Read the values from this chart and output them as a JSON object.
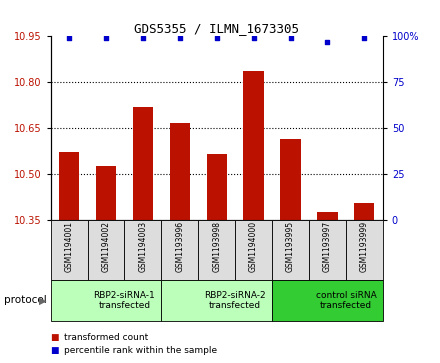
{
  "title": "GDS5355 / ILMN_1673305",
  "samples": [
    "GSM1194001",
    "GSM1194002",
    "GSM1194003",
    "GSM1193996",
    "GSM1193998",
    "GSM1194000",
    "GSM1193995",
    "GSM1193997",
    "GSM1193999"
  ],
  "bar_values": [
    10.57,
    10.525,
    10.72,
    10.665,
    10.565,
    10.835,
    10.615,
    10.375,
    10.405
  ],
  "percentile_values": [
    99,
    99,
    99,
    99,
    99,
    99,
    99,
    97,
    99
  ],
  "ylim_left": [
    10.35,
    10.95
  ],
  "ylim_right": [
    0,
    100
  ],
  "yticks_left": [
    10.35,
    10.5,
    10.65,
    10.8,
    10.95
  ],
  "yticks_right": [
    0,
    25,
    50,
    75,
    100
  ],
  "bar_color": "#bb1100",
  "dot_color": "#0000cc",
  "groups": [
    {
      "label": "RBP2-siRNA-1\ntransfected",
      "start": 0,
      "end": 3,
      "color": "#bbffbb"
    },
    {
      "label": "RBP2-siRNA-2\ntransfected",
      "start": 3,
      "end": 6,
      "color": "#bbffbb"
    },
    {
      "label": "control siRNA\ntransfected",
      "start": 6,
      "end": 9,
      "color": "#33cc33"
    }
  ],
  "sample_box_color": "#dddddd",
  "legend_red_label": "transformed count",
  "legend_blue_label": "percentile rank within the sample",
  "protocol_label": "protocol",
  "base_value": 10.35,
  "dot_percentile": 99
}
